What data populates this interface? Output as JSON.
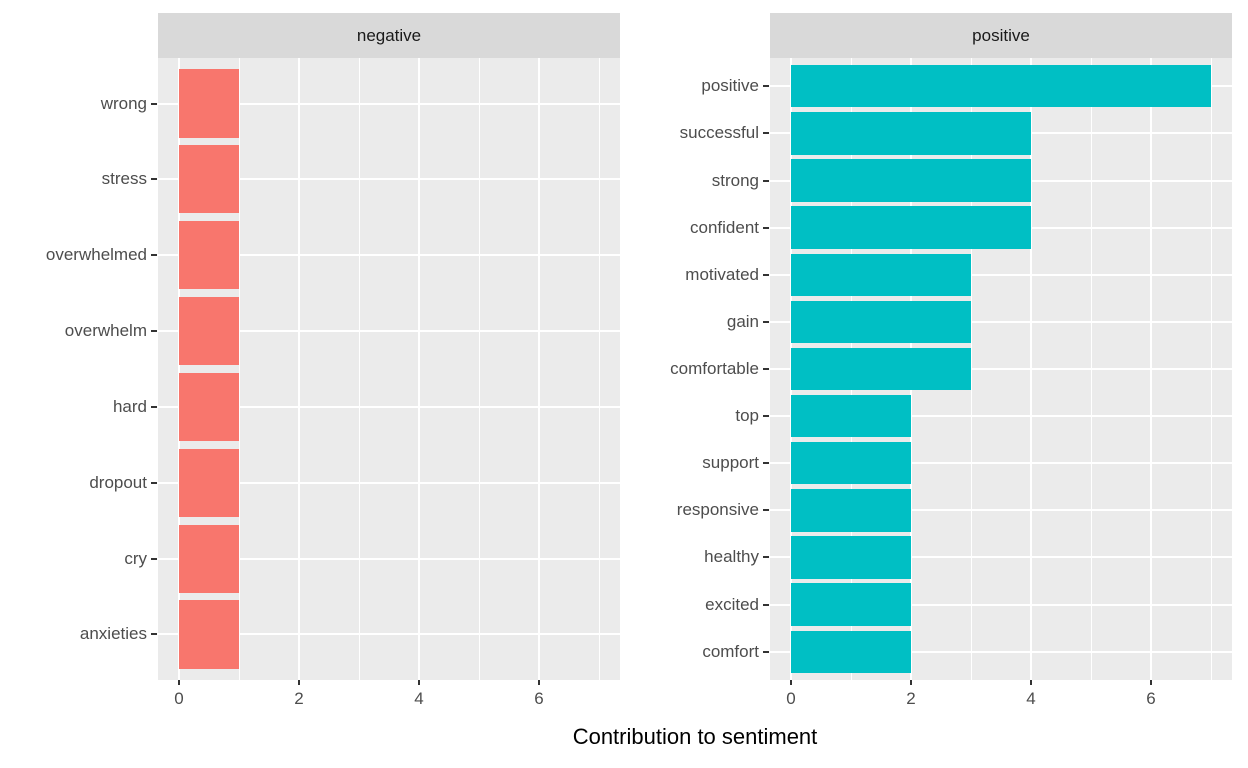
{
  "chart_data": {
    "type": "bar",
    "orientation": "horizontal",
    "title": "",
    "xlabel": "Contribution to sentiment",
    "ylabel": "",
    "xlim": [
      0,
      7
    ],
    "x_ticks": [
      0,
      2,
      4,
      6
    ],
    "x_minor_ticks": [
      1,
      3,
      5,
      7
    ],
    "grid": true,
    "legend_position": "none",
    "panel_bg": "#EBEBEB",
    "strip_bg": "#D9D9D9",
    "grid_color": "#FFFFFF",
    "tick_mark_color": "#333333",
    "axis_text_color": "#4D4D4D",
    "facets": [
      {
        "label": "negative",
        "color": "#F8766D",
        "categories": [
          "wrong",
          "stress",
          "overwhelmed",
          "overwhelm",
          "hard",
          "dropout",
          "cry",
          "anxieties"
        ],
        "values": [
          1,
          1,
          1,
          1,
          1,
          1,
          1,
          1
        ]
      },
      {
        "label": "positive",
        "color": "#00BFC4",
        "categories": [
          "positive",
          "successful",
          "strong",
          "confident",
          "motivated",
          "gain",
          "comfortable",
          "top",
          "support",
          "responsive",
          "healthy",
          "excited",
          "comfort"
        ],
        "values": [
          7,
          4,
          4,
          4,
          3,
          3,
          3,
          2,
          2,
          2,
          2,
          2,
          2
        ]
      }
    ]
  }
}
